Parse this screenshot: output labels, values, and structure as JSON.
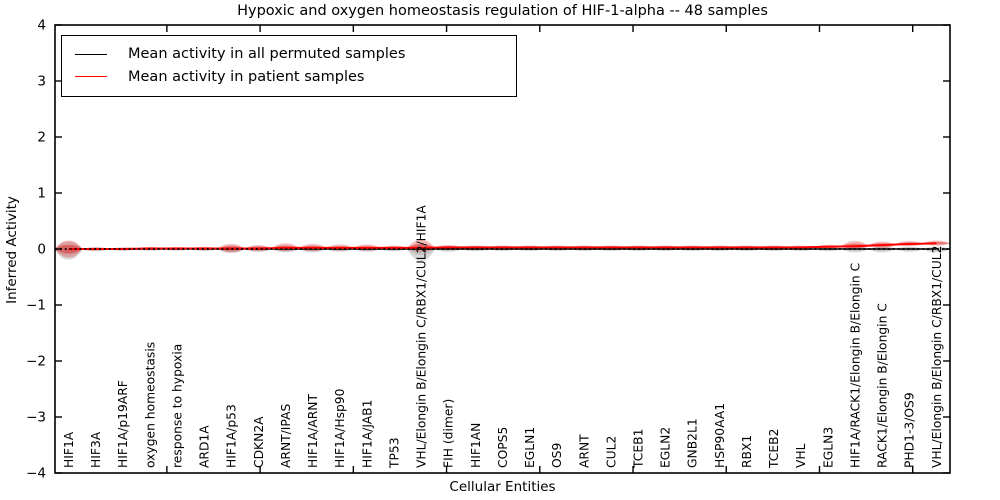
{
  "chart_data": {
    "type": "line",
    "variant": "violin-band-per-category",
    "title": "Hypoxic and oxygen homeostasis regulation of HIF-1-alpha -- 48 samples",
    "xlabel": "Cellular Entities",
    "ylabel": "Inferred Activity",
    "ylim": [
      -4,
      4
    ],
    "yticks": [
      -4,
      -3,
      -2,
      -1,
      0,
      1,
      2,
      3,
      4
    ],
    "x_numeric_range": [
      -1,
      47
    ],
    "x_numeric_ticks": [
      5,
      10,
      15,
      20,
      25,
      30,
      35,
      40,
      45
    ],
    "grid": false,
    "legend_position": "upper-left",
    "zero_line": {
      "y": 0,
      "style": "dotted",
      "color": "#000000"
    },
    "categories": [
      "HIF1A",
      "HIF3A",
      "HIF1A/p19ARF",
      "oxygen homeostasis",
      "response to hypoxia",
      "ARD1A",
      "HIF1A/p53",
      "CDKN2A",
      "ARNT/IPAS",
      "HIF1A/ARNT",
      "HIF1A/Hsp90",
      "HIF1A/JAB1",
      "TP53",
      "VHL/Elongin B/Elongin C/RBX1/CUL2/HIF1A",
      "FIH (dimer)",
      "HIF1AN",
      "COPS5",
      "EGLN1",
      "OS9",
      "ARNT",
      "CUL2",
      "TCEB1",
      "EGLN2",
      "GNB2L1",
      "HSP90AA1",
      "RBX1",
      "TCEB2",
      "VHL",
      "EGLN3",
      "HIF1A/RACK1/Elongin B/Elongin C",
      "RACK1/Elongin B/Elongin C",
      "PHD1-3/OS9",
      "VHL/Elongin B/Elongin C/RBX1/CUL2"
    ],
    "series": [
      {
        "name": "Mean activity in all permuted samples",
        "line_color": "#000000",
        "fill_color": "#909090",
        "mean": [
          0,
          0,
          0,
          0,
          0,
          0,
          0,
          0,
          0,
          0,
          0,
          0,
          0,
          0,
          0,
          0,
          0,
          0,
          0,
          0,
          0,
          0,
          0,
          0,
          0,
          0,
          0,
          0,
          0,
          0,
          0,
          0,
          0
        ],
        "spread_up": [
          0.13,
          0.03,
          0.025,
          0.025,
          0.025,
          0.03,
          0.06,
          0.05,
          0.05,
          0.05,
          0.04,
          0.04,
          0.04,
          0.09,
          0.04,
          0.03,
          0.025,
          0.025,
          0.025,
          0.025,
          0.025,
          0.025,
          0.025,
          0.025,
          0.025,
          0.025,
          0.025,
          0.025,
          0.03,
          0.05,
          0.05,
          0.04,
          0.04
        ],
        "spread_down": [
          0.19,
          0.04,
          0.03,
          0.03,
          0.03,
          0.035,
          0.07,
          0.05,
          0.06,
          0.06,
          0.05,
          0.05,
          0.04,
          0.21,
          0.05,
          0.04,
          0.035,
          0.035,
          0.035,
          0.035,
          0.035,
          0.035,
          0.035,
          0.035,
          0.035,
          0.035,
          0.035,
          0.035,
          0.04,
          0.06,
          0.06,
          0.05,
          0.06
        ]
      },
      {
        "name": "Mean activity in patient samples",
        "line_color": "#ff0000",
        "fill_color": "#e03030",
        "mean": [
          0,
          0,
          0,
          0.01,
          0.01,
          0.01,
          0.01,
          0.01,
          0.02,
          0.02,
          0.02,
          0.02,
          0.02,
          0.02,
          0.03,
          0.03,
          0.03,
          0.03,
          0.03,
          0.03,
          0.03,
          0.03,
          0.03,
          0.03,
          0.03,
          0.03,
          0.03,
          0.03,
          0.04,
          0.05,
          0.07,
          0.09,
          0.1
        ],
        "spread_up": [
          0.15,
          0.03,
          0.025,
          0.025,
          0.025,
          0.03,
          0.08,
          0.06,
          0.08,
          0.07,
          0.06,
          0.06,
          0.04,
          0.14,
          0.04,
          0.03,
          0.03,
          0.03,
          0.03,
          0.03,
          0.03,
          0.03,
          0.03,
          0.03,
          0.03,
          0.03,
          0.03,
          0.03,
          0.035,
          0.09,
          0.06,
          0.05,
          0.05
        ],
        "spread_down": [
          0.15,
          0.03,
          0.025,
          0.025,
          0.025,
          0.03,
          0.07,
          0.05,
          0.06,
          0.06,
          0.05,
          0.05,
          0.04,
          0.07,
          0.04,
          0.03,
          0.025,
          0.025,
          0.025,
          0.025,
          0.025,
          0.025,
          0.025,
          0.025,
          0.025,
          0.025,
          0.025,
          0.025,
          0.03,
          0.05,
          0.05,
          0.04,
          0.04
        ]
      }
    ]
  }
}
